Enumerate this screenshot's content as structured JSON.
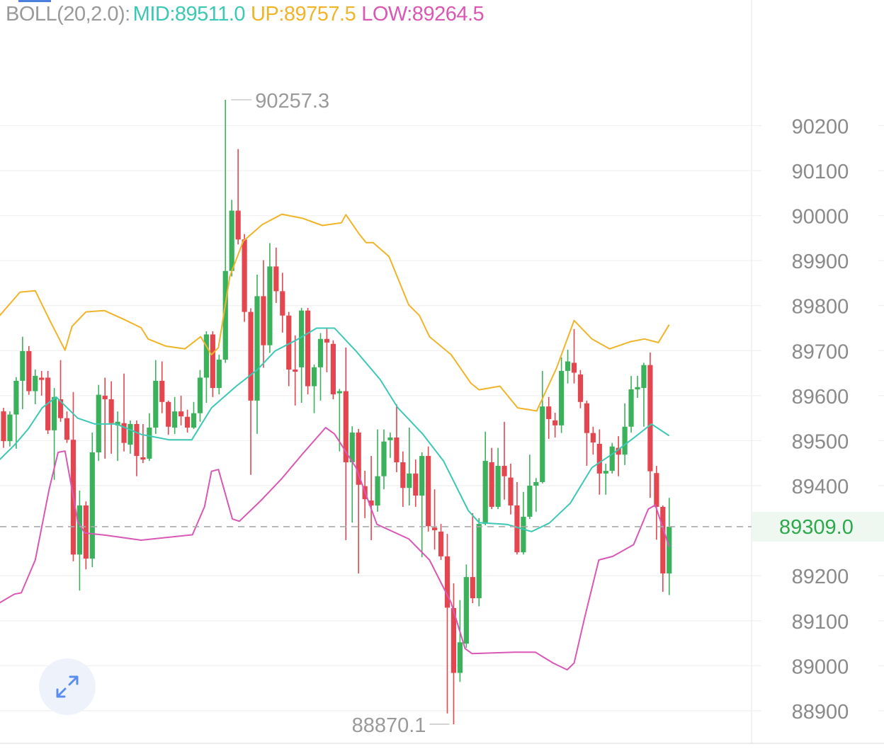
{
  "indicator": {
    "name": "BOLL(20,2.0):",
    "mid": "MID:89511.0",
    "up": "UP:89757.5",
    "low": "LOW:89264.5"
  },
  "current_price": "89309.0",
  "max_label": "90257.3",
  "min_label": "88870.1",
  "colors": {
    "up": "#3bb15c",
    "down": "#e3464f",
    "mid": "#3cc8b4",
    "upper": "#f0b429",
    "lower": "#d957b5",
    "axis_text": "#8a8a8a",
    "price": "#2ea84d"
  },
  "chart_data": {
    "type": "candlestick",
    "title": "BOLL(20,2.0)",
    "ylim": [
      88815,
      90479
    ],
    "yticks": [
      "90200",
      "90100",
      "90000",
      "89900",
      "89800",
      "89700",
      "89600",
      "89500",
      "89400",
      "89200",
      "89100",
      "89000",
      "88900"
    ],
    "ytick_values": [
      90200,
      90100,
      90000,
      89900,
      89800,
      89700,
      89600,
      89500,
      89400,
      89200,
      89100,
      89000,
      88900
    ],
    "grid": true,
    "current_price": 89309.0,
    "candles_ohlc": [
      [
        89565,
        89573,
        89484,
        89499
      ],
      [
        89499,
        89565,
        89487,
        89558
      ],
      [
        89558,
        89641,
        89482,
        89633
      ],
      [
        89633,
        89731,
        89570,
        89699
      ],
      [
        89699,
        89710,
        89602,
        89610
      ],
      [
        89610,
        89658,
        89581,
        89644
      ],
      [
        89640,
        89655,
        89600,
        89635
      ],
      [
        89640,
        89655,
        89515,
        89523
      ],
      [
        89523,
        89617,
        89413,
        89597
      ],
      [
        89592,
        89679,
        89542,
        89550
      ],
      [
        89550,
        89565,
        89495,
        89502
      ],
      [
        89502,
        89608,
        89232,
        89247
      ],
      [
        89247,
        89389,
        89167,
        89356
      ],
      [
        89356,
        89365,
        89214,
        89238
      ],
      [
        89238,
        89518,
        89219,
        89474
      ],
      [
        89474,
        89624,
        89455,
        89602
      ],
      [
        89600,
        89640,
        89460,
        89592
      ],
      [
        89592,
        89632,
        89471,
        89539
      ],
      [
        89534,
        89565,
        89455,
        89542
      ],
      [
        89539,
        89649,
        89476,
        89495
      ],
      [
        89491,
        89545,
        89471,
        89537
      ],
      [
        89537,
        89545,
        89421,
        89466
      ],
      [
        89463,
        89537,
        89450,
        89458
      ],
      [
        89460,
        89561,
        89455,
        89529
      ],
      [
        89529,
        89679,
        89515,
        89633
      ],
      [
        89633,
        89676,
        89561,
        89586
      ],
      [
        89586,
        89589,
        89513,
        89531
      ],
      [
        89529,
        89597,
        89515,
        89565
      ],
      [
        89565,
        89600,
        89534,
        89554
      ],
      [
        89553,
        89569,
        89518,
        89529
      ],
      [
        89529,
        89586,
        89526,
        89561
      ],
      [
        89561,
        89657,
        89542,
        89640
      ],
      [
        89640,
        89743,
        89584,
        89736
      ],
      [
        89736,
        89743,
        89597,
        89617
      ],
      [
        89617,
        89691,
        89603,
        89680
      ],
      [
        89680,
        90257.3,
        89673,
        89877
      ],
      [
        89877,
        90035,
        89865,
        90011
      ],
      [
        90011,
        90148,
        89936,
        89947
      ],
      [
        89947,
        89959,
        89764,
        89786
      ],
      [
        89786,
        89794,
        89424,
        89589
      ],
      [
        89589,
        89869,
        89515,
        89821
      ],
      [
        89821,
        89901,
        89662,
        89712
      ],
      [
        89712,
        89939,
        89695,
        89887
      ],
      [
        89887,
        89929,
        89806,
        89832
      ],
      [
        89832,
        89873,
        89740,
        89778
      ],
      [
        89778,
        89786,
        89621,
        89658
      ],
      [
        89658,
        89734,
        89578,
        89654
      ],
      [
        89663,
        89795,
        89584,
        89789
      ],
      [
        89789,
        89795,
        89603,
        89621
      ],
      [
        89621,
        89669,
        89561,
        89663
      ],
      [
        89663,
        89739,
        89589,
        89726
      ],
      [
        89726,
        89750,
        89652,
        89718
      ],
      [
        89715,
        89723,
        89592,
        89603
      ],
      [
        89606,
        89615,
        89476,
        89610
      ],
      [
        89610,
        89707,
        89279,
        89452
      ],
      [
        89452,
        89532,
        89318,
        89518
      ],
      [
        89518,
        89526,
        89205,
        89402
      ],
      [
        89399,
        89433,
        89328,
        89370
      ],
      [
        89367,
        89466,
        89279,
        89356
      ],
      [
        89356,
        89525,
        89342,
        89421
      ],
      [
        89421,
        89525,
        89392,
        89498
      ],
      [
        89501,
        89518,
        89462,
        89507
      ],
      [
        89507,
        89581,
        89430,
        89452
      ],
      [
        89452,
        89476,
        89353,
        89395
      ],
      [
        89395,
        89529,
        89356,
        89427
      ],
      [
        89427,
        89458,
        89353,
        89378
      ],
      [
        89378,
        89474,
        89241,
        89466
      ],
      [
        89466,
        89487,
        89298,
        89310
      ],
      [
        89307,
        89392,
        89258,
        89301
      ],
      [
        89298,
        89315,
        89235,
        89243
      ],
      [
        89243,
        89293,
        88894,
        89129
      ],
      [
        89128,
        89183,
        88870.1,
        88984
      ],
      [
        88984,
        89146,
        88964,
        89052
      ],
      [
        89049,
        89225,
        89040,
        89197
      ],
      [
        89197,
        89339,
        89139,
        89150
      ],
      [
        89150,
        89328,
        89132,
        89315
      ],
      [
        89315,
        89520,
        89312,
        89455
      ],
      [
        89452,
        89484,
        89348,
        89353
      ],
      [
        89353,
        89484,
        89348,
        89444
      ],
      [
        89444,
        89542,
        89369,
        89421
      ],
      [
        89418,
        89449,
        89336,
        89356
      ],
      [
        89356,
        89408,
        89247,
        89252
      ],
      [
        89252,
        89386,
        89247,
        89331
      ],
      [
        89331,
        89469,
        89326,
        89400
      ],
      [
        89400,
        89417,
        89342,
        89408
      ],
      [
        89408,
        89655,
        89405,
        89576
      ],
      [
        89576,
        89597,
        89504,
        89548
      ],
      [
        89545,
        89562,
        89507,
        89534
      ],
      [
        89534,
        89685,
        89517,
        89655
      ],
      [
        89655,
        89702,
        89627,
        89676
      ],
      [
        89673,
        89748,
        89627,
        89651
      ],
      [
        89647,
        89657,
        89572,
        89586
      ],
      [
        89583,
        89589,
        89444,
        89517
      ],
      [
        89517,
        89531,
        89469,
        89496
      ],
      [
        89493,
        89525,
        89380,
        89427
      ],
      [
        89427,
        89449,
        89380,
        89433
      ],
      [
        89433,
        89495,
        89427,
        89487
      ],
      [
        89484,
        89510,
        89421,
        89469
      ],
      [
        89469,
        89583,
        89446,
        89531
      ],
      [
        89531,
        89644,
        89518,
        89614
      ],
      [
        89614,
        89644,
        89595,
        89619
      ],
      [
        89617,
        89673,
        89531,
        89668
      ],
      [
        89668,
        89696,
        89373,
        89432
      ],
      [
        89428,
        89444,
        89280,
        89353
      ],
      [
        89353,
        89356,
        89164,
        89205
      ],
      [
        89205,
        89373,
        89157,
        89309
      ]
    ],
    "series": [
      {
        "name": "UP",
        "points": [
          [
            -0.6,
            89778
          ],
          [
            2.6,
            89830
          ],
          [
            5,
            89833
          ],
          [
            7.2,
            89770
          ],
          [
            9.7,
            89701
          ],
          [
            10.8,
            89754
          ],
          [
            13,
            89786
          ],
          [
            15.9,
            89789
          ],
          [
            18.9,
            89770
          ],
          [
            21.7,
            89751
          ],
          [
            22.8,
            89726
          ],
          [
            25.6,
            89710
          ],
          [
            28.6,
            89704
          ],
          [
            31.1,
            89731
          ],
          [
            32.8,
            89691
          ],
          [
            33.9,
            89707
          ],
          [
            34.8,
            89786
          ],
          [
            35.7,
            89865
          ],
          [
            37.8,
            89943
          ],
          [
            40.8,
            89980
          ],
          [
            43.9,
            90003
          ],
          [
            47.2,
            89994
          ],
          [
            50.3,
            89978
          ],
          [
            53.3,
            89984
          ],
          [
            54,
            90002
          ],
          [
            56.1,
            89959
          ],
          [
            57.2,
            89940
          ],
          [
            58.3,
            89940
          ],
          [
            60.8,
            89909
          ],
          [
            63.9,
            89802
          ],
          [
            65.6,
            89778
          ],
          [
            67.2,
            89731
          ],
          [
            70.6,
            89691
          ],
          [
            73.7,
            89628
          ],
          [
            75,
            89613
          ],
          [
            78.3,
            89621
          ],
          [
            81.1,
            89573
          ],
          [
            84.1,
            89566
          ],
          [
            87.2,
            89660
          ],
          [
            90,
            89767
          ],
          [
            92.8,
            89726
          ],
          [
            95.6,
            89704
          ],
          [
            98.9,
            89720
          ],
          [
            101.1,
            89726
          ],
          [
            103.3,
            89718
          ],
          [
            105,
            89757.5
          ]
        ]
      },
      {
        "name": "MID",
        "points": [
          [
            -0.6,
            89458
          ],
          [
            1.7,
            89490
          ],
          [
            3.9,
            89526
          ],
          [
            6.1,
            89573
          ],
          [
            8.3,
            89597
          ],
          [
            11.7,
            89550
          ],
          [
            14.4,
            89537
          ],
          [
            17.8,
            89537
          ],
          [
            21.7,
            89514
          ],
          [
            26.1,
            89502
          ],
          [
            29.7,
            89502
          ],
          [
            32.8,
            89573
          ],
          [
            36.7,
            89621
          ],
          [
            40,
            89657
          ],
          [
            42.8,
            89699
          ],
          [
            46.1,
            89723
          ],
          [
            49.4,
            89750
          ],
          [
            52.2,
            89750
          ],
          [
            55.6,
            89699
          ],
          [
            59.4,
            89636
          ],
          [
            62.2,
            89573
          ],
          [
            66.1,
            89515
          ],
          [
            69.4,
            89455
          ],
          [
            73.3,
            89345
          ],
          [
            75,
            89318
          ],
          [
            79.4,
            89314
          ],
          [
            83.3,
            89298
          ],
          [
            86.1,
            89317
          ],
          [
            89.4,
            89361
          ],
          [
            92.8,
            89440
          ],
          [
            96.1,
            89471
          ],
          [
            99.4,
            89506
          ],
          [
            102.2,
            89537
          ],
          [
            105,
            89511
          ]
        ]
      },
      {
        "name": "LOW",
        "points": [
          [
            -0.6,
            89140
          ],
          [
            1.7,
            89159
          ],
          [
            2.8,
            89162
          ],
          [
            5,
            89235
          ],
          [
            7.2,
            89392
          ],
          [
            8.6,
            89474
          ],
          [
            9.7,
            89477
          ],
          [
            11.7,
            89321
          ],
          [
            12.8,
            89295
          ],
          [
            16.1,
            89290
          ],
          [
            21.7,
            89279
          ],
          [
            29.8,
            89291
          ],
          [
            31.7,
            89353
          ],
          [
            32.8,
            89432
          ],
          [
            33.9,
            89436
          ],
          [
            36.1,
            89326
          ],
          [
            37.2,
            89321
          ],
          [
            40.6,
            89367
          ],
          [
            43.9,
            89416
          ],
          [
            47.2,
            89471
          ],
          [
            50.8,
            89529
          ],
          [
            52.2,
            89515
          ],
          [
            55.6,
            89440
          ],
          [
            58.9,
            89314
          ],
          [
            63.9,
            89282
          ],
          [
            67.2,
            89235
          ],
          [
            70.6,
            89140
          ],
          [
            72.8,
            89038
          ],
          [
            73.9,
            89027
          ],
          [
            80.6,
            89030
          ],
          [
            83.9,
            89030
          ],
          [
            86.7,
            89006
          ],
          [
            88.9,
            88991
          ],
          [
            90,
            89006
          ],
          [
            91.7,
            89109
          ],
          [
            93.9,
            89235
          ],
          [
            96.1,
            89243
          ],
          [
            99.4,
            89269
          ],
          [
            101.7,
            89348
          ],
          [
            102.8,
            89357
          ],
          [
            105,
            89264.5
          ]
        ]
      }
    ]
  }
}
